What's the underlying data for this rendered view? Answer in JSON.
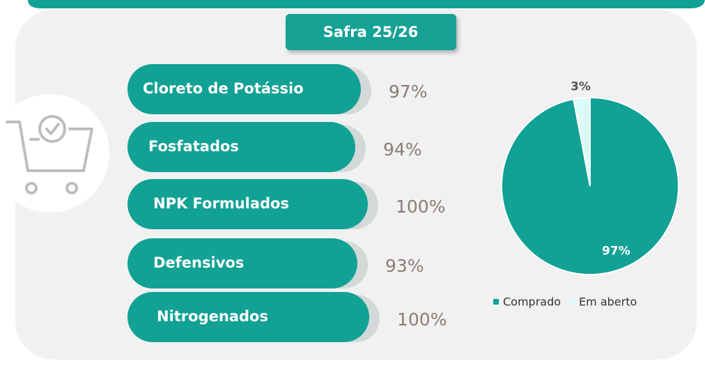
{
  "badge": "Safra 25/26",
  "items": [
    {
      "label": "Cloreto de Potássio",
      "percent": "97%"
    },
    {
      "label": "Fosfatados",
      "percent": "94%"
    },
    {
      "label": "NPK Formulados",
      "percent": "100%"
    },
    {
      "label": "Defensivos",
      "percent": "93%"
    },
    {
      "label": "Nitrogenados",
      "percent": "100%"
    }
  ],
  "chart_data": {
    "type": "pie",
    "categories": [
      "Comprado",
      "Em aberto"
    ],
    "values": [
      97,
      3
    ],
    "value_labels": [
      "97%",
      "3%"
    ],
    "colors": [
      "#12a195",
      "#dcfaf8"
    ],
    "legend": "bottom"
  }
}
